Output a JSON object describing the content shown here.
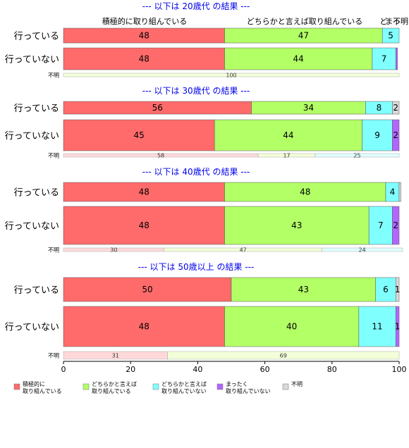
{
  "chart_data": {
    "type": "bar",
    "orientation": "horizontal",
    "stacked": true,
    "xlim": [
      0,
      100
    ],
    "x_ticks": [
      "0",
      "20",
      "40",
      "60",
      "80",
      "100"
    ],
    "column_headers": [
      "積極的に取り組んでいる",
      "どちらかと言えば取り組んでいる",
      "ど",
      "まっ",
      "不明"
    ],
    "legend": {
      "placement": "bottom",
      "entries": [
        {
          "label": [
            "積極的に",
            "取り組んでいる"
          ],
          "color": "#ff6b6b"
        },
        {
          "label": [
            "どちらかと言えば",
            "取り組んでいる"
          ],
          "color": "#b2ff66"
        },
        {
          "label": [
            "どちらかと言えば",
            "取り組んでいない"
          ],
          "color": "#80ffff"
        },
        {
          "label": [
            "まったく",
            "取り組んでいない"
          ],
          "color": "#b266ff"
        },
        {
          "label": [
            "不明"
          ],
          "color": "#d9d9d9"
        }
      ]
    },
    "sections": [
      {
        "title": "--- 以下は 20歳代 の結果 ---",
        "groups": [
          {
            "label": "行っている",
            "values": [
              48,
              47,
              5,
              0,
              0
            ]
          },
          {
            "label": "行っていない",
            "values": [
              48,
              44,
              7,
              0.5,
              0
            ]
          },
          {
            "label": "不明",
            "small": true,
            "values": [
              0,
              100,
              0,
              0,
              0
            ]
          }
        ]
      },
      {
        "title": "--- 以下は 30歳代 の結果 ---",
        "groups": [
          {
            "label": "行っている",
            "values": [
              56,
              34,
              8,
              0,
              2
            ]
          },
          {
            "label": "行っていない",
            "values": [
              45,
              44,
              9,
              2,
              0
            ]
          },
          {
            "label": "不明",
            "small": true,
            "values": [
              58,
              17,
              25,
              0,
              0
            ]
          }
        ]
      },
      {
        "title": "--- 以下は 40歳代 の結果 ---",
        "groups": [
          {
            "label": "行っている",
            "values": [
              48,
              48,
              4,
              0,
              0.5
            ]
          },
          {
            "label": "行っていない",
            "values": [
              48,
              43,
              7,
              2,
              0
            ]
          },
          {
            "label": "不明",
            "small": true,
            "values": [
              30,
              47,
              24,
              0,
              0
            ]
          }
        ]
      },
      {
        "title": "--- 以下は 50歳以上 の結果 ---",
        "groups": [
          {
            "label": "行っている",
            "values": [
              50,
              43,
              6,
              0,
              1
            ]
          },
          {
            "label": "行っていない",
            "values": [
              48,
              40,
              11,
              1,
              0
            ]
          },
          {
            "label": "不明",
            "small": true,
            "values": [
              31,
              69,
              0,
              0,
              0
            ]
          }
        ]
      }
    ]
  }
}
